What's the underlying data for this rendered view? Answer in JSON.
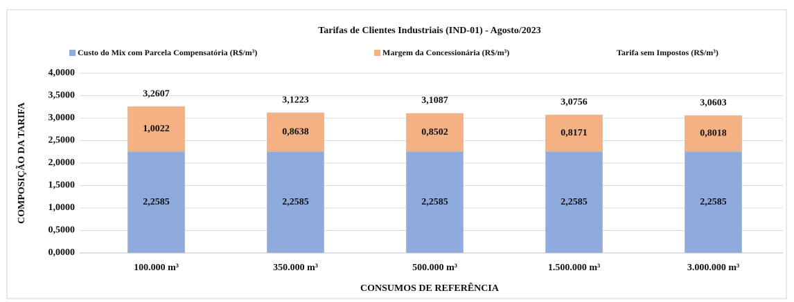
{
  "chart_data": {
    "type": "bar",
    "title": "Tarifas de Clientes Industriais (IND-01) - Agosto/2023",
    "xlabel": "CONSUMOS DE REFERÊNCIA",
    "ylabel": "COMPOSIÇÃO DA TARIFA",
    "categories": [
      "100.000 m³",
      "350.000 m³",
      "500.000 m³",
      "1.500.000 m³",
      "3.000.000 m³"
    ],
    "series": [
      {
        "name": "Custo do Mix com Parcela Compensatória (R$/m³)",
        "color": "#8faadc",
        "values": [
          2.2585,
          2.2585,
          2.2585,
          2.2585,
          2.2585
        ],
        "value_labels": [
          "2,2585",
          "2,2585",
          "2,2585",
          "2,2585",
          "2,2585"
        ]
      },
      {
        "name": "Margem da Concessionária (R$/m³)",
        "color": "#f4b183",
        "values": [
          1.0022,
          0.8638,
          0.8502,
          0.8171,
          0.8018
        ],
        "value_labels": [
          "1,0022",
          "0,8638",
          "0,8502",
          "0,8171",
          "0,8018"
        ]
      },
      {
        "name": "Tarifa sem Impostos (R$/m³)",
        "values": [
          3.2607,
          3.1223,
          3.1087,
          3.0756,
          3.0603
        ],
        "value_labels": [
          "3,2607",
          "3,1223",
          "3,1087",
          "3,0756",
          "3,0603"
        ]
      }
    ],
    "ylim": [
      0,
      4
    ],
    "yticks": [
      {
        "value": 0,
        "label": "0,0000"
      },
      {
        "value": 0.5,
        "label": "0,5000"
      },
      {
        "value": 1,
        "label": "1,0000"
      },
      {
        "value": 1.5,
        "label": "1,5000"
      },
      {
        "value": 2,
        "label": "2,0000"
      },
      {
        "value": 2.5,
        "label": "2,5000"
      },
      {
        "value": 3,
        "label": "3,0000"
      },
      {
        "value": 3.5,
        "label": "3,5000"
      },
      {
        "value": 4,
        "label": "4,0000"
      }
    ],
    "grid": true
  }
}
